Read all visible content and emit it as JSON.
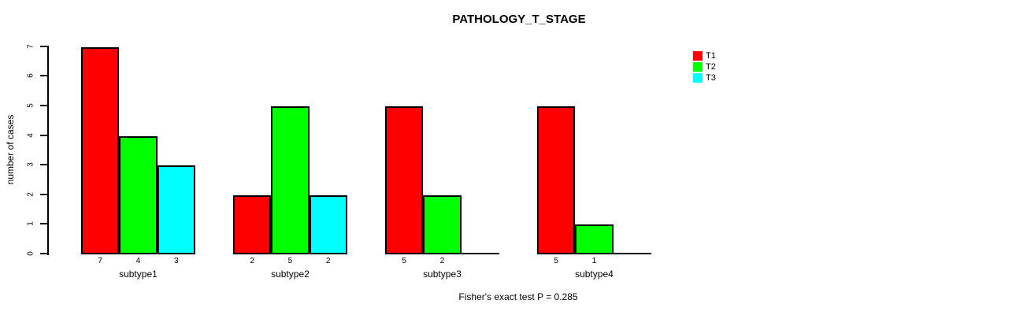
{
  "chart_data": {
    "type": "bar",
    "title": "PATHOLOGY_T_STAGE",
    "ylabel": "number of cases",
    "xlabel": "",
    "ylim": [
      0,
      7
    ],
    "yticks": [
      0,
      1,
      2,
      3,
      4,
      5,
      6,
      7
    ],
    "categories": [
      "subtype1",
      "subtype2",
      "subtype3",
      "subtype4"
    ],
    "series": [
      {
        "name": "T1",
        "color": "#ff0000",
        "values": [
          7,
          2,
          5,
          5
        ]
      },
      {
        "name": "T2",
        "color": "#00ff00",
        "values": [
          4,
          5,
          2,
          1
        ]
      },
      {
        "name": "T3",
        "color": "#00ffff",
        "values": [
          3,
          2,
          0,
          0
        ]
      }
    ],
    "bar_value_labels": [
      [
        "7",
        "4",
        "3"
      ],
      [
        "2",
        "5",
        "2"
      ],
      [
        "5",
        "2",
        ""
      ],
      [
        "5",
        "1",
        ""
      ]
    ],
    "legend_position": "top-right",
    "grid": false,
    "footer": "Fisher's exact test P = 0.285",
    "axis_color": "#000000",
    "background_color": "#ffffff"
  }
}
